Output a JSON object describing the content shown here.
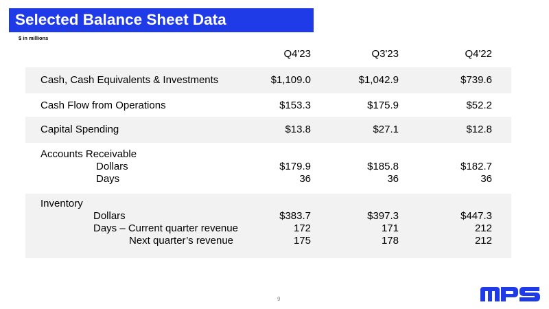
{
  "title": "Selected Balance Sheet Data",
  "units_note": "$ in millions",
  "columns": [
    "Q4'23",
    "Q3'23",
    "Q4'22"
  ],
  "rows": {
    "cash": {
      "label": "Cash, Cash Equivalents & Investments",
      "values": [
        "$1,109.0",
        "$1,042.9",
        "$739.6"
      ]
    },
    "cash_flow": {
      "label": "Cash Flow from Operations",
      "values": [
        "$153.3",
        "$175.9",
        "$52.2"
      ]
    },
    "capex": {
      "label": "Capital Spending",
      "values": [
        "$13.8",
        "$27.1",
        "$12.8"
      ]
    },
    "receivables": {
      "label": "Accounts Receivable",
      "dollars": {
        "label": "Dollars",
        "values": [
          "$179.9",
          "$185.8",
          "$182.7"
        ]
      },
      "days": {
        "label": "Days",
        "values": [
          "36",
          "36",
          "36"
        ]
      }
    },
    "inventory": {
      "label": "Inventory",
      "dollars": {
        "label": "Dollars",
        "values": [
          "$383.7",
          "$397.3",
          "$447.3"
        ]
      },
      "days_current": {
        "label": "Days – Current quarter revenue",
        "values": [
          "172",
          "171",
          "212"
        ]
      },
      "days_next": {
        "label": "Next quarter’s revenue",
        "values": [
          "175",
          "178",
          "212"
        ]
      }
    }
  },
  "page_number": "9",
  "logo_text": "MPS",
  "colors": {
    "title_bar": "#1f3be8",
    "band": "#f2f2f2",
    "logo": "#1f3be8"
  }
}
